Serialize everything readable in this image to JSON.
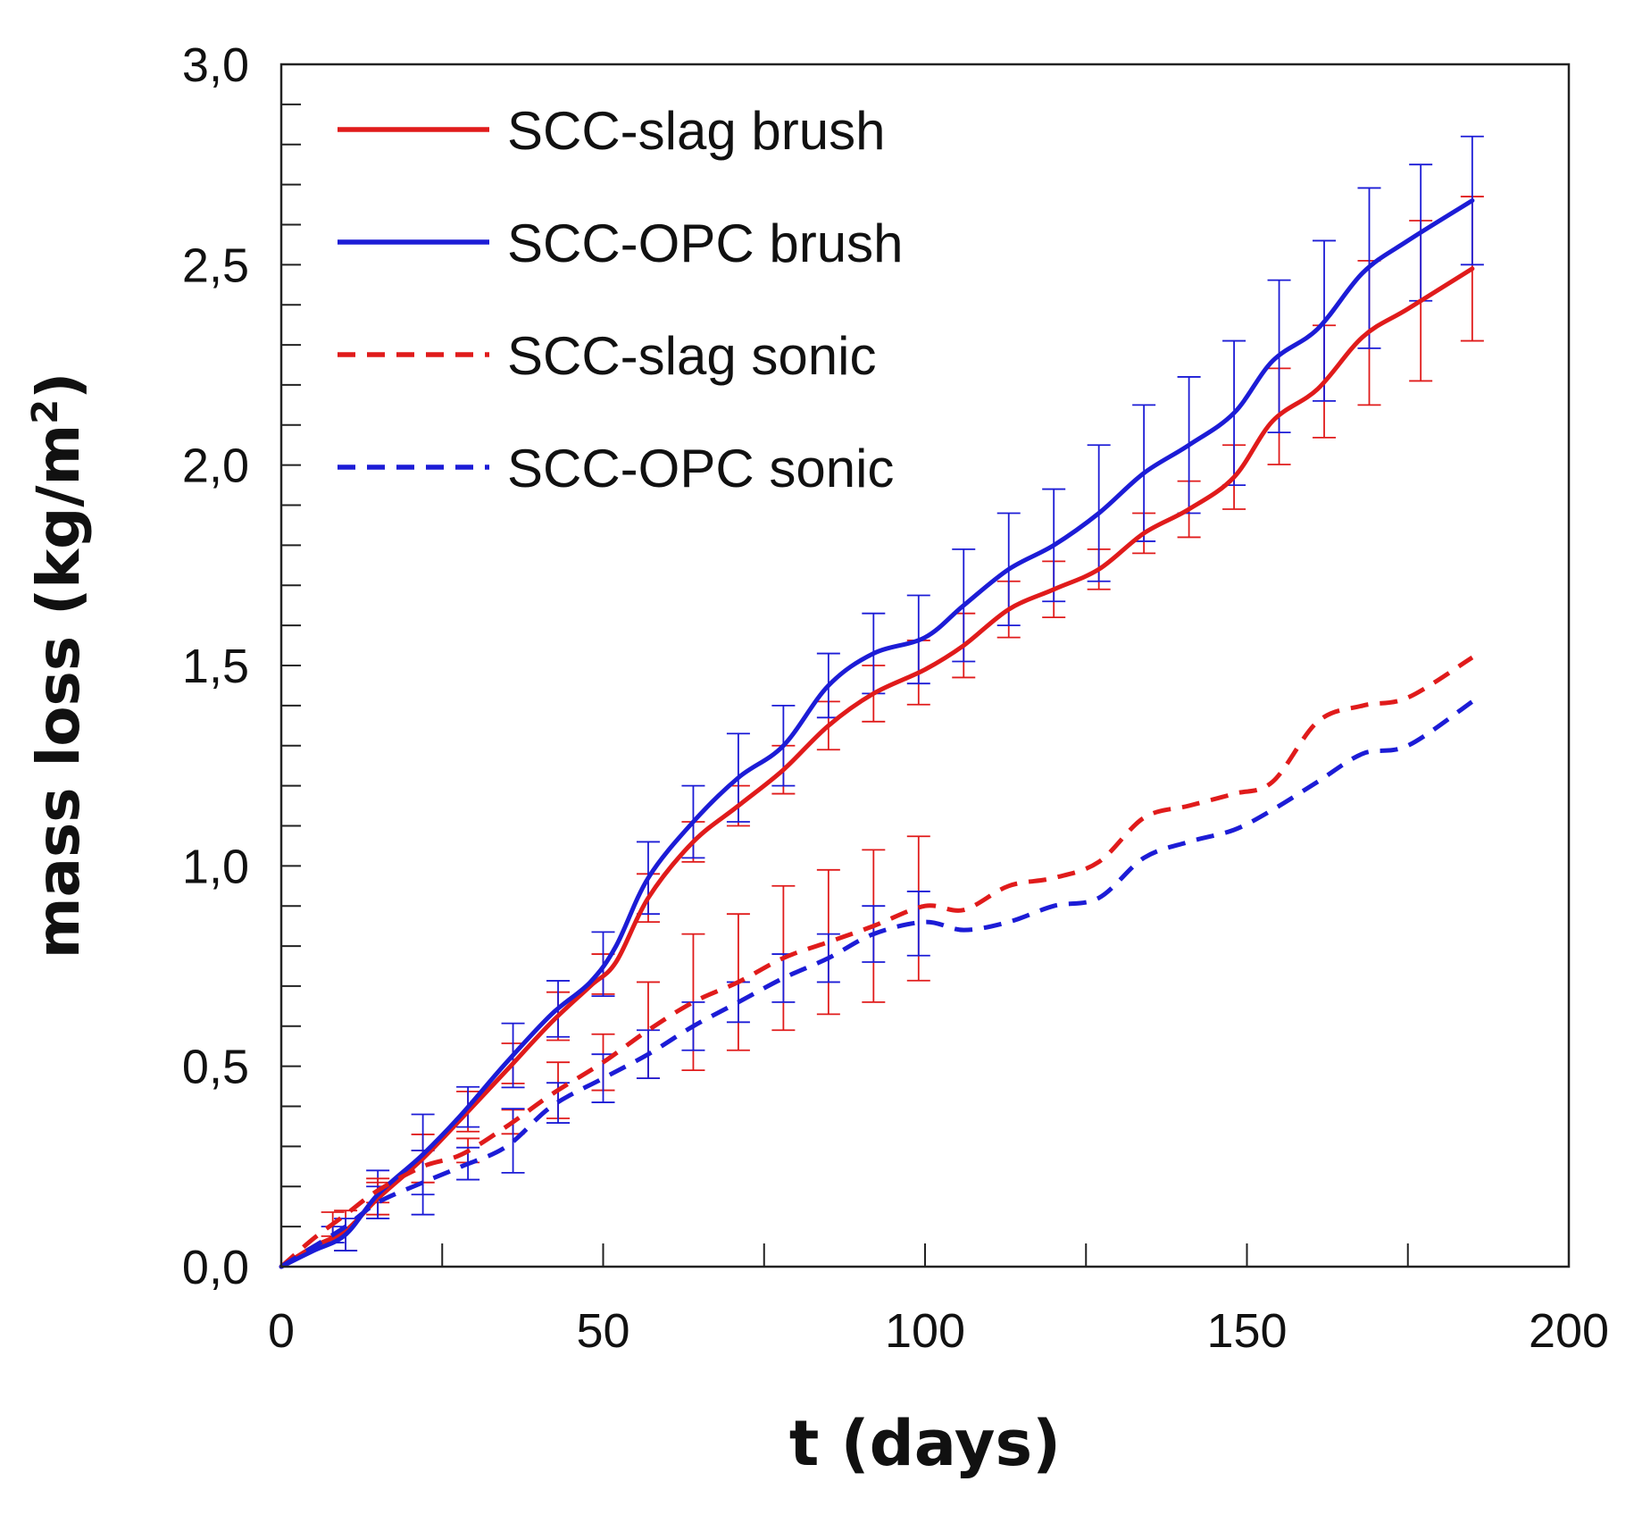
{
  "chart_data": {
    "type": "line",
    "title": "",
    "xlabel": "t (days)",
    "ylabel_main": "mass loss (kg/m",
    "ylabel_sup": "2",
    "ylabel_end": ")",
    "xlim": [
      0,
      200
    ],
    "ylim": [
      0,
      3.0
    ],
    "xticks": [
      0,
      50,
      100,
      150,
      200
    ],
    "xtick_labels": [
      "0",
      "50",
      "100",
      "150",
      "200"
    ],
    "yticks": [
      0,
      0.5,
      1.0,
      1.5,
      2.0,
      2.5,
      3.0
    ],
    "ytick_labels": [
      "0,0",
      "0,5",
      "1,0",
      "1,5",
      "2,0",
      "2,5",
      "3,0"
    ],
    "grid": false,
    "legend_position": "top-left",
    "series": [
      {
        "name": "SCC-slag brush",
        "color": "#e01b1b",
        "dash": "solid",
        "x": [
          0,
          5,
          10,
          15,
          22,
          28,
          35,
          42,
          48,
          52,
          57,
          64,
          71,
          78,
          85,
          92,
          100,
          106,
          113,
          120,
          127,
          134,
          141,
          148,
          154,
          161,
          168,
          175,
          185
        ],
        "y": [
          0,
          0.05,
          0.09,
          0.17,
          0.27,
          0.37,
          0.49,
          0.61,
          0.7,
          0.76,
          0.92,
          1.06,
          1.15,
          1.24,
          1.35,
          1.43,
          1.49,
          1.55,
          1.64,
          1.69,
          1.74,
          1.83,
          1.89,
          1.97,
          2.11,
          2.19,
          2.32,
          2.39,
          2.49
        ],
        "error_x": [
          10,
          15,
          22,
          29,
          36,
          43,
          50,
          57,
          64,
          71,
          78,
          85,
          92,
          99,
          106,
          113,
          120,
          127,
          134,
          141,
          148,
          155,
          162,
          169,
          177,
          185
        ],
        "error_y": [
          0.05,
          0.04,
          0.06,
          0.05,
          0.05,
          0.06,
          0.05,
          0.06,
          0.05,
          0.05,
          0.06,
          0.06,
          0.07,
          0.08,
          0.08,
          0.07,
          0.07,
          0.05,
          0.05,
          0.07,
          0.08,
          0.12,
          0.14,
          0.18,
          0.2,
          0.18
        ]
      },
      {
        "name": "SCC-OPC brush",
        "color": "#1c1cd6",
        "dash": "solid",
        "x": [
          0,
          5,
          10,
          15,
          22,
          28,
          35,
          42,
          48,
          52,
          57,
          64,
          71,
          78,
          85,
          92,
          100,
          106,
          113,
          120,
          127,
          134,
          141,
          148,
          154,
          161,
          168,
          175,
          185
        ],
        "y": [
          0,
          0.04,
          0.08,
          0.18,
          0.28,
          0.38,
          0.51,
          0.63,
          0.71,
          0.8,
          0.97,
          1.11,
          1.22,
          1.3,
          1.45,
          1.53,
          1.57,
          1.65,
          1.74,
          1.8,
          1.88,
          1.98,
          2.05,
          2.13,
          2.26,
          2.34,
          2.48,
          2.56,
          2.66
        ],
        "error_x": [
          10,
          15,
          22,
          29,
          36,
          43,
          50,
          57,
          64,
          71,
          78,
          85,
          92,
          99,
          106,
          113,
          120,
          127,
          134,
          141,
          148,
          155,
          162,
          169,
          177,
          185
        ],
        "error_y": [
          0.04,
          0.06,
          0.1,
          0.05,
          0.08,
          0.07,
          0.08,
          0.09,
          0.09,
          0.11,
          0.1,
          0.08,
          0.1,
          0.11,
          0.14,
          0.14,
          0.14,
          0.17,
          0.17,
          0.17,
          0.18,
          0.19,
          0.2,
          0.2,
          0.17,
          0.16
        ]
      },
      {
        "name": "SCC-slag sonic",
        "color": "#e01b1b",
        "dash": "dashed",
        "x": [
          0,
          5,
          10,
          15,
          22,
          28,
          35,
          42,
          50,
          57,
          64,
          71,
          78,
          85,
          92,
          100,
          106,
          113,
          120,
          127,
          134,
          141,
          148,
          154,
          161,
          168,
          175,
          185
        ],
        "y": [
          0,
          0.07,
          0.13,
          0.19,
          0.25,
          0.28,
          0.35,
          0.43,
          0.51,
          0.59,
          0.66,
          0.71,
          0.77,
          0.81,
          0.85,
          0.9,
          0.89,
          0.95,
          0.97,
          1.01,
          1.12,
          1.15,
          1.18,
          1.21,
          1.36,
          1.4,
          1.42,
          1.52
        ],
        "error_x": [
          8,
          15,
          22,
          29,
          36,
          43,
          50,
          57,
          64,
          71,
          78,
          85,
          92,
          99
        ],
        "error_y": [
          0.03,
          0.03,
          0.04,
          0.03,
          0.03,
          0.07,
          0.07,
          0.12,
          0.17,
          0.17,
          0.18,
          0.18,
          0.19,
          0.18
        ]
      },
      {
        "name": "SCC-OPC sonic",
        "color": "#1c1cd6",
        "dash": "dashed",
        "x": [
          0,
          5,
          10,
          15,
          22,
          28,
          35,
          42,
          50,
          57,
          64,
          71,
          78,
          85,
          92,
          100,
          106,
          113,
          120,
          127,
          134,
          141,
          148,
          154,
          161,
          168,
          175,
          185
        ],
        "y": [
          0,
          0.05,
          0.1,
          0.16,
          0.21,
          0.25,
          0.3,
          0.4,
          0.47,
          0.53,
          0.6,
          0.66,
          0.72,
          0.77,
          0.83,
          0.86,
          0.84,
          0.86,
          0.9,
          0.92,
          1.02,
          1.06,
          1.09,
          1.14,
          1.21,
          1.28,
          1.3,
          1.41
        ],
        "error_x": [
          8,
          15,
          22,
          29,
          36,
          43,
          50,
          57,
          64,
          71,
          78,
          85,
          92,
          99
        ],
        "error_y": [
          0.02,
          0.04,
          0.08,
          0.04,
          0.08,
          0.05,
          0.06,
          0.06,
          0.06,
          0.05,
          0.06,
          0.06,
          0.07,
          0.08
        ]
      }
    ]
  }
}
